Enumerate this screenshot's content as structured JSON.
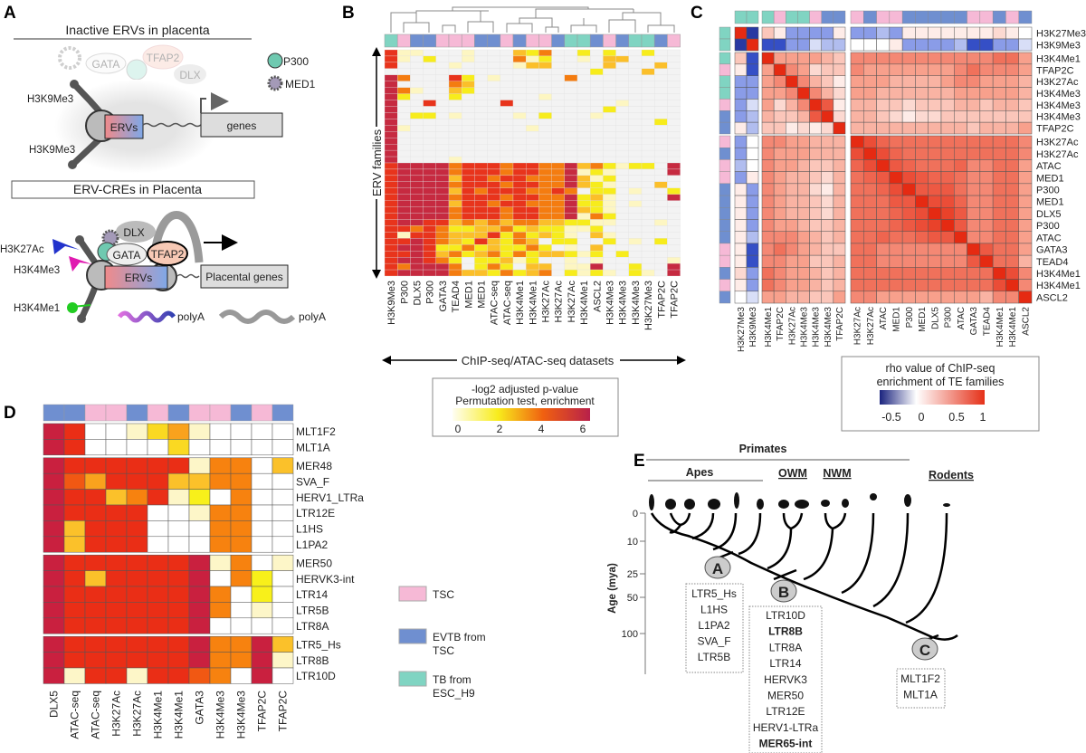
{
  "colors": {
    "tsc": "#f6b9d6",
    "evtb": "#6f8fd0",
    "tb": "#80d4c2"
  },
  "panel_labels": {
    "a": "A",
    "b": "B",
    "c": "C",
    "d": "D",
    "e": "E"
  },
  "panel_a": {
    "title_inactive": "Inactive ERVs in placenta",
    "title_active": "ERV-CREs in Placenta",
    "gata": "GATA",
    "tfap2": "TFAP2",
    "dlx": "DLX",
    "p300": "P300",
    "med1": "MED1",
    "h3k9me3_top": "H3K9Me3",
    "h3k9me3_bottom": "H3K9Me3",
    "ervs": "ERVs",
    "genes": "genes",
    "h3k27ac": "H3K27Ac",
    "h3k4me3": "H3K4Me3",
    "h3k4me1": "H3K4Me1",
    "placental_genes": "Placental genes",
    "polya_1": "polyA",
    "polya_2": "polyA"
  },
  "chart_data": [
    {
      "panel": "B",
      "type": "heatmap",
      "ylabel": "ERV families",
      "xlabel": "ChIP-seq/ATAC-seq datasets",
      "legend_title": [
        "-log2 adjusted p-value",
        "Permutation test, enrichment"
      ],
      "legend_ticks": [
        "0",
        "2",
        "4",
        "6"
      ],
      "value_range": [
        0,
        6
      ],
      "columns": [
        "H3K9Me3",
        "P300",
        "DLX5",
        "P300",
        "GATA3",
        "TEAD4",
        "MED1",
        "MED1",
        "ATAC-seq",
        "ATAC-seq",
        "H3K4Me1",
        "H3K4Me1",
        "H3K27Ac",
        "H3K27Ac",
        "H3K27Ac",
        "H3K4Me1",
        "ASCL2",
        "H3K4Me3",
        "H3K4Me3",
        "H3K4Me3",
        "H3K27Me3",
        "TFAP2C",
        "TFAP2C"
      ],
      "column_groups": [
        "tb",
        "tsc",
        "evtb",
        "evtb",
        "tsc",
        "tsc",
        "tsc",
        "evtb",
        "evtb",
        "tsc",
        "evtb",
        "tsc",
        "tsc",
        "evtb",
        "tb",
        "tb",
        "evtb",
        "tsc",
        "evtb",
        "tb",
        "tb",
        "evtb",
        "tsc"
      ],
      "rows_levels": [
        "51100010003240020200200",
        "51020010004120010330000",
        "50000100001330000300030",
        "00000000000000002000300",
        "64000520100000400000000",
        "60000430000000000000000",
        "64100320000000000000000",
        "62000200000010000000000",
        "60050000050000000010000",
        "60000000000000000200000",
        "60220100001020001000000",
        "60000000000000000000020",
        "61000000000100000000000",
        "60000000000000000000000",
        "60000000000000000000000",
        "60000000000000000000000",
        "60000000000000000000000",
        "60000100000000000000000",
        "56666455545544634212206",
        "56666455545544612100006",
        "56666355455444631200000",
        "56666455545544632100030",
        "56666354555445402201002",
        "56666455545544623100006",
        "56666355455444622101000",
        "56666455545544632100000",
        "56666455545544614200000",
        "56655343434433221100010",
        "55454223342322112000000",
        "51554333524232103100000",
        "55654325324302200201020",
        "56652242322420103000000",
        "55653423424233212020000",
        "56654202231200101000001",
        "54666402420330116002006",
        "56666433242340212102106"
      ]
    },
    {
      "panel": "C",
      "type": "heatmap",
      "legend_title": [
        "rho value of ChIP-seq",
        "enrichment of TE families"
      ],
      "legend_ticks": [
        "-0.5",
        "0",
        "0.5",
        "1"
      ],
      "value_range": [
        -1,
        1
      ],
      "labels": [
        "H3K27Me3",
        "H3K9Me3",
        "H3K4Me1",
        "TFAP2C",
        "H3K27Ac",
        "H3K4Me3",
        "H3K4Me3",
        "H3K4Me3",
        "TFAP2C",
        "H3K27Ac",
        "H3K27Ac",
        "ATAC",
        "MED1",
        "P300",
        "MED1",
        "DLX5",
        "P300",
        "ATAC",
        "GATA3",
        "TEAD4",
        "H3K4Me1",
        "H3K4Me1",
        "ASCL2"
      ],
      "groups": [
        "tb",
        "tb",
        "tb",
        "tsc",
        "tb",
        "tb",
        "tsc",
        "evtb",
        "evtb",
        "tsc",
        "evtb",
        "tsc",
        "tsc",
        "evtb",
        "evtb",
        "evtb",
        "evtb",
        "evtb",
        "tsc",
        "tsc",
        "evtb",
        "tsc",
        "evtb"
      ],
      "matrix": [
        [
          1,
          -0.8,
          0.3,
          0.1,
          -0.3,
          -0.3,
          -0.3,
          -0.3,
          0.1,
          -0.3,
          -0.3,
          -0.2,
          -0.3,
          0.1,
          0.1,
          0.1,
          0.1,
          0.1,
          0.1,
          0.1,
          0.2,
          0.1,
          0.0
        ],
        [
          -0.8,
          1,
          -0.6,
          -0.6,
          -0.3,
          -0.3,
          -0.1,
          -0.2,
          -0.2,
          0,
          0,
          0,
          0.1,
          -0.3,
          -0.3,
          -0.3,
          -0.3,
          -0.2,
          -0.6,
          -0.6,
          -0.3,
          -0.3,
          -0.1
        ],
        [
          0.3,
          -0.6,
          1,
          0.5,
          0.5,
          0.5,
          0.5,
          0.4,
          0.3,
          0.6,
          0.6,
          0.6,
          0.6,
          0.6,
          0.6,
          0.6,
          0.6,
          0.6,
          0.6,
          0.6,
          0.7,
          0.7,
          0.5
        ],
        [
          0.1,
          -0.6,
          0.5,
          1,
          0.6,
          0.5,
          0.2,
          0.3,
          0.3,
          0.6,
          0.5,
          0.5,
          0.5,
          0.5,
          0.5,
          0.5,
          0.5,
          0.6,
          0.7,
          0.6,
          0.6,
          0.6,
          0.5
        ],
        [
          -0.3,
          -0.3,
          0.5,
          0.6,
          1,
          0.6,
          0.4,
          0.3,
          0.1,
          0.5,
          0.5,
          0.5,
          0.4,
          0.4,
          0.4,
          0.4,
          0.5,
          0.6,
          0.6,
          0.5,
          0.5,
          0.5,
          0.4
        ],
        [
          -0.3,
          -0.3,
          0.5,
          0.5,
          0.6,
          1,
          0.6,
          0.4,
          0.2,
          0.5,
          0.5,
          0.4,
          0.4,
          0.4,
          0.4,
          0.4,
          0.4,
          0.5,
          0.5,
          0.5,
          0.5,
          0.5,
          0.4
        ],
        [
          -0.3,
          -0.1,
          0.5,
          0.2,
          0.4,
          0.6,
          1,
          0.8,
          0.1,
          0.4,
          0.4,
          0.3,
          0.3,
          0.2,
          0.3,
          0.3,
          0.3,
          0.4,
          0.4,
          0.3,
          0.4,
          0.4,
          0.3
        ],
        [
          -0.3,
          -0.2,
          0.4,
          0.3,
          0.3,
          0.4,
          0.8,
          1,
          0.2,
          0.4,
          0.4,
          0.3,
          0.2,
          0.1,
          0.2,
          0.2,
          0.3,
          0.3,
          0.3,
          0.3,
          0.3,
          0.3,
          0.3
        ],
        [
          0.1,
          -0.2,
          0.3,
          0.3,
          0.1,
          0.2,
          0.1,
          0.2,
          1,
          0.4,
          0.4,
          0.4,
          0.4,
          0.4,
          0.4,
          0.4,
          0.4,
          0.4,
          0.3,
          0.4,
          0.4,
          0.4,
          0.5
        ],
        [
          -0.3,
          0,
          0.6,
          0.6,
          0.5,
          0.5,
          0.4,
          0.4,
          0.4,
          1,
          0.85,
          0.75,
          0.7,
          0.7,
          0.7,
          0.7,
          0.7,
          0.7,
          0.7,
          0.7,
          0.7,
          0.7,
          0.6
        ],
        [
          -0.3,
          0,
          0.6,
          0.5,
          0.5,
          0.5,
          0.4,
          0.4,
          0.4,
          0.85,
          1,
          0.85,
          0.75,
          0.7,
          0.7,
          0.7,
          0.7,
          0.7,
          0.7,
          0.7,
          0.7,
          0.7,
          0.6
        ],
        [
          -0.2,
          0,
          0.6,
          0.5,
          0.5,
          0.4,
          0.3,
          0.3,
          0.4,
          0.75,
          0.85,
          1,
          0.8,
          0.75,
          0.7,
          0.7,
          0.7,
          0.75,
          0.6,
          0.6,
          0.7,
          0.7,
          0.5
        ],
        [
          -0.3,
          0.1,
          0.6,
          0.5,
          0.4,
          0.4,
          0.3,
          0.2,
          0.4,
          0.7,
          0.75,
          0.8,
          1,
          0.85,
          0.8,
          0.75,
          0.75,
          0.7,
          0.6,
          0.6,
          0.7,
          0.7,
          0.5
        ],
        [
          0.1,
          -0.3,
          0.6,
          0.5,
          0.4,
          0.4,
          0.2,
          0.1,
          0.4,
          0.7,
          0.7,
          0.75,
          0.85,
          1,
          0.8,
          0.8,
          0.8,
          0.7,
          0.6,
          0.6,
          0.7,
          0.7,
          0.5
        ],
        [
          0.1,
          -0.3,
          0.6,
          0.5,
          0.4,
          0.4,
          0.3,
          0.2,
          0.4,
          0.7,
          0.7,
          0.7,
          0.8,
          0.8,
          1,
          0.85,
          0.85,
          0.75,
          0.6,
          0.6,
          0.7,
          0.7,
          0.5
        ],
        [
          0.1,
          -0.3,
          0.6,
          0.5,
          0.4,
          0.4,
          0.3,
          0.2,
          0.4,
          0.7,
          0.7,
          0.7,
          0.75,
          0.8,
          0.85,
          1,
          0.9,
          0.8,
          0.6,
          0.6,
          0.7,
          0.7,
          0.5
        ],
        [
          0.1,
          -0.3,
          0.6,
          0.5,
          0.5,
          0.4,
          0.3,
          0.3,
          0.4,
          0.7,
          0.7,
          0.7,
          0.75,
          0.8,
          0.85,
          0.9,
          1,
          0.8,
          0.6,
          0.6,
          0.7,
          0.7,
          0.5
        ],
        [
          0.1,
          -0.2,
          0.6,
          0.6,
          0.6,
          0.5,
          0.4,
          0.3,
          0.4,
          0.7,
          0.7,
          0.75,
          0.7,
          0.7,
          0.75,
          0.8,
          0.8,
          1,
          0.6,
          0.6,
          0.7,
          0.7,
          0.5
        ],
        [
          0.1,
          -0.6,
          0.6,
          0.7,
          0.6,
          0.5,
          0.4,
          0.3,
          0.3,
          0.7,
          0.7,
          0.6,
          0.6,
          0.6,
          0.6,
          0.6,
          0.6,
          0.6,
          1,
          0.8,
          0.7,
          0.7,
          0.5
        ],
        [
          0.1,
          -0.6,
          0.6,
          0.6,
          0.5,
          0.5,
          0.3,
          0.3,
          0.4,
          0.7,
          0.7,
          0.6,
          0.6,
          0.6,
          0.6,
          0.6,
          0.6,
          0.6,
          0.8,
          1,
          0.7,
          0.7,
          0.4
        ],
        [
          0.2,
          -0.3,
          0.7,
          0.6,
          0.5,
          0.5,
          0.4,
          0.3,
          0.4,
          0.7,
          0.7,
          0.7,
          0.7,
          0.7,
          0.7,
          0.7,
          0.7,
          0.7,
          0.7,
          0.7,
          1,
          0.85,
          0.6
        ],
        [
          0.1,
          -0.3,
          0.7,
          0.6,
          0.5,
          0.5,
          0.4,
          0.3,
          0.4,
          0.7,
          0.7,
          0.7,
          0.7,
          0.7,
          0.7,
          0.7,
          0.7,
          0.7,
          0.7,
          0.7,
          0.85,
          1,
          0.6
        ],
        [
          0.0,
          -0.1,
          0.5,
          0.5,
          0.4,
          0.4,
          0.3,
          0.3,
          0.5,
          0.6,
          0.6,
          0.5,
          0.5,
          0.5,
          0.5,
          0.5,
          0.5,
          0.5,
          0.5,
          0.4,
          0.6,
          0.6,
          1
        ]
      ]
    },
    {
      "panel": "D",
      "type": "heatmap",
      "value_range": [
        0,
        6
      ],
      "columns": [
        "DLX5",
        "ATAC-seq",
        "ATAC-seq",
        "H3K27Ac",
        "H3K27Ac",
        "H3K4Me1",
        "H3K4Me1",
        "GATA3",
        "H3K4Me3",
        "H3K4Me3",
        "TFAP2C",
        "TFAP2C"
      ],
      "column_groups": [
        "evtb",
        "evtb",
        "tsc",
        "tsc",
        "evtb",
        "tsc",
        "evtb",
        "tsc",
        "tsc",
        "evtb",
        "tsc",
        "evtb"
      ],
      "rows": [
        "MLT1F2",
        "MLT1A",
        "MER48",
        "SVA_F",
        "HERV1_LTRa",
        "LTR12E",
        "L1HS",
        "L1PA2",
        "MER50",
        "HERVK3-int",
        "LTR14",
        "LTR5B",
        "LTR8A",
        "LTR5_Hs",
        "LTR8B",
        "LTR10D"
      ],
      "values": [
        [
          6,
          5,
          0,
          0,
          1,
          2.5,
          3.5,
          1,
          0,
          0,
          0,
          0
        ],
        [
          6,
          5,
          0,
          0,
          0,
          0,
          2.5,
          0,
          0,
          0,
          0,
          0
        ],
        [
          6,
          5,
          5,
          5,
          5,
          5,
          5,
          1,
          4,
          4,
          0,
          3
        ],
        [
          6,
          4.5,
          3.5,
          5,
          5,
          5,
          3,
          3,
          4,
          4,
          0,
          0
        ],
        [
          6,
          5,
          5,
          3,
          4,
          5,
          1,
          2,
          0,
          4,
          0,
          0
        ],
        [
          6,
          5,
          5,
          5,
          5,
          0,
          0,
          1,
          4,
          4,
          0,
          0
        ],
        [
          6,
          3,
          5,
          5,
          5,
          0,
          0,
          0,
          4,
          4,
          0,
          0
        ],
        [
          6,
          3,
          5,
          5,
          5,
          0,
          0,
          0,
          4,
          4,
          0,
          0
        ],
        [
          6,
          5,
          5,
          5,
          5,
          5,
          5,
          6,
          1,
          4,
          0,
          1
        ],
        [
          6,
          5,
          3,
          5,
          5,
          5,
          5,
          6,
          0,
          4,
          2,
          0
        ],
        [
          6,
          5,
          5,
          5,
          5,
          5,
          5,
          6,
          4,
          0,
          2,
          0
        ],
        [
          6,
          5,
          5,
          5,
          5,
          5,
          5,
          6,
          4,
          0,
          1,
          0
        ],
        [
          6,
          5,
          5,
          5,
          5,
          5,
          5,
          6,
          0,
          0,
          0,
          0
        ],
        [
          6,
          5,
          5,
          5,
          5,
          5,
          5,
          6,
          4,
          4,
          6,
          3
        ],
        [
          6,
          5,
          5,
          5,
          5,
          5,
          5,
          6,
          4,
          4,
          6,
          1
        ],
        [
          6,
          1,
          5,
          5,
          1,
          5,
          5,
          4.5,
          4,
          0,
          6,
          0
        ]
      ],
      "row_blocks": [
        2,
        6,
        5,
        3
      ]
    }
  ],
  "legend_groups": [
    {
      "key": "tsc",
      "label": [
        "TSC"
      ]
    },
    {
      "key": "evtb",
      "label": [
        "EVTB from",
        "TSC"
      ]
    },
    {
      "key": "tb",
      "label": [
        "TB from",
        "ESC_H9"
      ]
    }
  ],
  "panel_e": {
    "primates": "Primates",
    "apes": "Apes",
    "owm": "OWM",
    "nwm": "NWM",
    "rodents": "Rodents",
    "axis_label": "Age (mya)",
    "ticks": [
      "0",
      "10",
      "25",
      "50",
      "100"
    ],
    "node_a": "A",
    "node_b": "B",
    "node_c": "C",
    "box_a": [
      {
        "t": "LTR5_Hs",
        "b": false
      },
      {
        "t": "L1HS",
        "b": false
      },
      {
        "t": "L1PA2",
        "b": false
      },
      {
        "t": "SVA_F",
        "b": false
      },
      {
        "t": "LTR5B",
        "b": false
      }
    ],
    "box_b": [
      {
        "t": "LTR10D",
        "b": false
      },
      {
        "t": "LTR8B",
        "b": true
      },
      {
        "t": "LTR8A",
        "b": false
      },
      {
        "t": "LTR14",
        "b": false
      },
      {
        "t": "HERVK3",
        "b": false
      },
      {
        "t": "MER50",
        "b": false
      },
      {
        "t": "LTR12E",
        "b": false
      },
      {
        "t": "HERV1-LTRa",
        "b": false
      },
      {
        "t": "MER65-int",
        "b": true
      }
    ],
    "box_c": [
      {
        "t": "MLT1F2",
        "b": false
      },
      {
        "t": "MLT1A",
        "b": false
      }
    ]
  }
}
